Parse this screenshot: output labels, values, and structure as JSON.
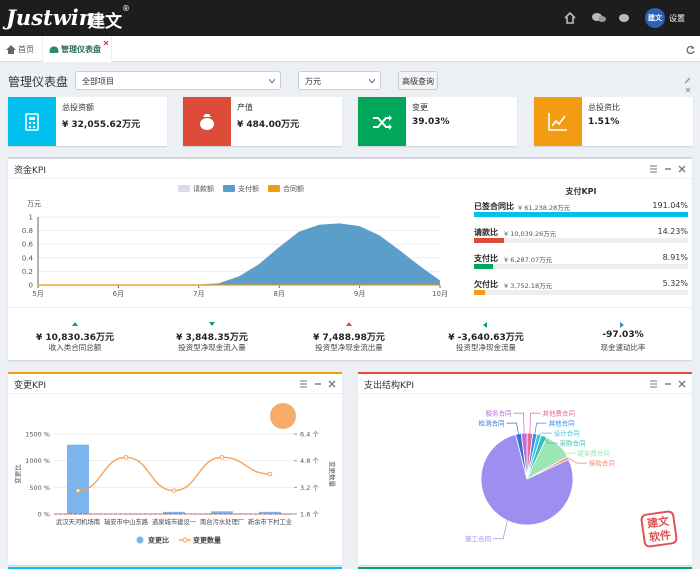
{
  "header": {
    "logo": "Justwin",
    "logo_cn": "建文",
    "logo_mark": "®",
    "avatar": "建文",
    "settings": "设置"
  },
  "tabs": [
    "首页",
    "管理仪表盘"
  ],
  "toolbar": {
    "title": "管理仪表盘",
    "project": "全部项目",
    "unit": "万元",
    "button": "高级查询"
  },
  "kpis": [
    {
      "label": "总投资额",
      "value": "¥ 32,055.62万元",
      "color": "#00c0ef"
    },
    {
      "label": "产值",
      "value": "¥ 484.00万元",
      "color": "#dd4b39"
    },
    {
      "label": "变更",
      "value": "39.03%",
      "color": "#00a65a"
    },
    {
      "label": "总投资比",
      "value": "1.51%",
      "color": "#f39c12"
    }
  ],
  "funds_panel": {
    "title": "资金KPI",
    "chart": {
      "type": "area",
      "y_label": "万元",
      "x": [
        5,
        5.25,
        5.5,
        5.75,
        6,
        6.25,
        6.5,
        6.75,
        7,
        7.25,
        7.5,
        7.75,
        8,
        8.25,
        8.5,
        8.75,
        9,
        9.25,
        9.5,
        9.75,
        10
      ],
      "series": [
        {
          "name": "请款额",
          "color": "#d9dde8",
          "values": [
            0,
            0,
            0,
            0,
            0,
            0,
            0,
            0,
            0,
            0,
            0,
            0,
            0,
            0,
            0,
            0,
            0,
            0,
            0,
            0,
            0
          ]
        },
        {
          "name": "支付额",
          "color": "#5b9ec9",
          "values": [
            0,
            0,
            0,
            0,
            0,
            0,
            0,
            0,
            0,
            0.02,
            0.12,
            0.3,
            0.55,
            0.78,
            0.88,
            0.9,
            0.86,
            0.72,
            0.5,
            0.27,
            0.06
          ]
        },
        {
          "name": "合同额",
          "color": "#f39c12",
          "values": [
            0,
            0,
            0,
            0,
            0,
            0,
            0,
            0,
            0,
            0,
            0,
            0,
            0,
            0,
            0,
            0,
            0,
            0,
            0,
            0,
            0
          ]
        }
      ],
      "xlim": [
        5,
        10
      ],
      "xticks": [
        {
          "value": 5,
          "label": "5月"
        },
        {
          "value": 6,
          "label": "6月"
        },
        {
          "value": 7,
          "label": "7月"
        },
        {
          "value": 8,
          "label": "8月"
        },
        {
          "value": 9,
          "label": "9月"
        },
        {
          "value": 10,
          "label": "10月"
        }
      ],
      "ylim": [
        0,
        1
      ],
      "yticks": [
        0,
        0.2,
        0.4,
        0.6,
        0.8,
        1
      ],
      "grid": true
    },
    "payment_kpi": {
      "title": "支付KPI",
      "items": [
        {
          "label": "已签合同比",
          "amount": "¥ 61,238.28万元",
          "percent": 191.04,
          "percent_label": "191.04%",
          "color": "#00c0ef"
        },
        {
          "label": "请款比",
          "amount": "¥ 10,039.26万元",
          "percent": 14.23,
          "percent_label": "14.23%",
          "color": "#dd4b39"
        },
        {
          "label": "支付比",
          "amount": "¥ 6,287.07万元",
          "percent": 8.91,
          "percent_label": "8.91%",
          "color": "#00a65a"
        },
        {
          "label": "欠付比",
          "amount": "¥ 3,752.18万元",
          "percent": 5.32,
          "percent_label": "5.32%",
          "color": "#f39c12"
        }
      ]
    },
    "stats": [
      {
        "value": "¥ 10,830.36万元",
        "label": "收入类合同总额"
      },
      {
        "value": "¥ 3,848.35万元",
        "label": "投资型净现金流入量"
      },
      {
        "value": "¥ 7,488.98万元",
        "label": "投资型净现金流出量"
      },
      {
        "value": "¥ -3,640.63万元",
        "label": "投资型净现金流量"
      },
      {
        "value": "-97.03%",
        "label": "现金速动比率"
      }
    ]
  },
  "change_panel": {
    "title": "变更KPI",
    "chart": {
      "type": "bar-line",
      "categories": [
        "武汉天河机场南",
        "瑞安市中山东路",
        "道泉城市建设一",
        "南台污水处理厂",
        "新余市下村工业"
      ],
      "series": [
        {
          "name": "变更比",
          "color": "#7cb5ec",
          "values": [
            1300,
            0,
            40,
            50,
            40
          ]
        },
        {
          "name": "变更数量",
          "color": "#f7a35c",
          "values": [
            3,
            5,
            3,
            5,
            4
          ],
          "axis": "y2"
        }
      ],
      "y_label": "变更比",
      "y2_label": "变更数量",
      "ylim": [
        0,
        1500
      ],
      "yticks": [
        {
          "value": 0,
          "label": "0 %"
        },
        {
          "value": 500,
          "label": "500 %"
        },
        {
          "value": 1000,
          "label": "1000 %"
        },
        {
          "value": 1500,
          "label": "1500 %"
        }
      ],
      "y2lim": [
        1.6,
        6.4
      ],
      "y2ticks": [
        {
          "value": 1.6,
          "label": "1.6 个"
        },
        {
          "value": 3.2,
          "label": "3.2 个"
        },
        {
          "value": 4.8,
          "label": "4.8 个"
        },
        {
          "value": 6.4,
          "label": "6.4 个"
        }
      ],
      "grid": true
    }
  },
  "expense_panel": {
    "title": "支出结构KPI",
    "chart": {
      "type": "pie",
      "categories": [
        "其他费合同",
        "其他合同",
        "设计合同",
        "采购合同",
        "建安费合同",
        "保险合同",
        "施工合同",
        "检测合同",
        "服务合同"
      ],
      "values": [
        2,
        1.5,
        1.5,
        2,
        10,
        1,
        78,
        2,
        2
      ],
      "colors": [
        "#e86a92",
        "#3a8ee6",
        "#38c4e8",
        "#2fc2b2",
        "#9de5b4",
        "#f4866b",
        "#9d8ff0",
        "#3f6fd6",
        "#c46ad6"
      ]
    },
    "stamp": "建文软件"
  }
}
